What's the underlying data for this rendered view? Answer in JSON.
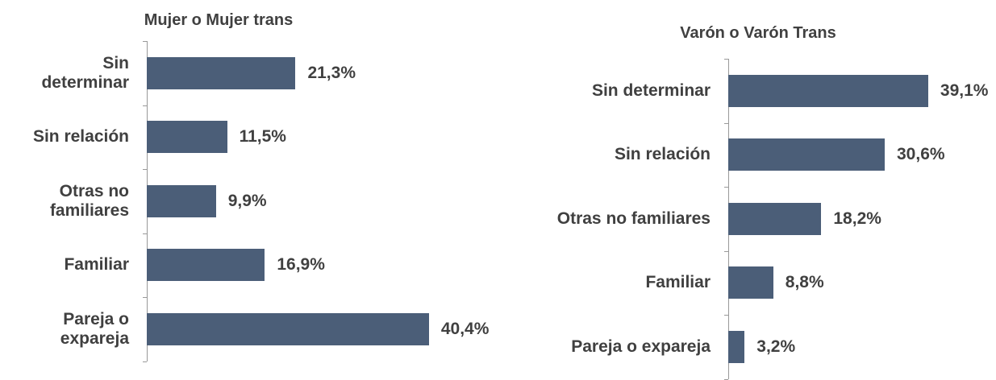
{
  "chart_data": [
    {
      "type": "bar",
      "orientation": "horizontal",
      "title": "Mujer o Mujer trans",
      "categories": [
        "Sin determinar",
        "Sin relación",
        "Otras no familiares",
        "Familiar",
        "Pareja o expareja"
      ],
      "values": [
        21.3,
        11.5,
        9.9,
        16.9,
        40.4
      ],
      "value_labels": [
        "21,3%",
        "11,5%",
        "9,9%",
        "16,9%",
        "40,4%"
      ],
      "color": "#4b5e78",
      "xlim": [
        0,
        50
      ]
    },
    {
      "type": "bar",
      "orientation": "horizontal",
      "title": "Varón o Varón Trans",
      "categories": [
        "Sin determinar",
        "Sin relación",
        "Otras no familiares",
        "Familiar",
        "Pareja o expareja"
      ],
      "values": [
        39.1,
        30.6,
        18.2,
        8.8,
        3.2
      ],
      "value_labels": [
        "39,1%",
        "30,6%",
        "18,2%",
        "8,8%",
        "3,2%"
      ],
      "color": "#4b5e78",
      "xlim": [
        0,
        50
      ]
    }
  ]
}
